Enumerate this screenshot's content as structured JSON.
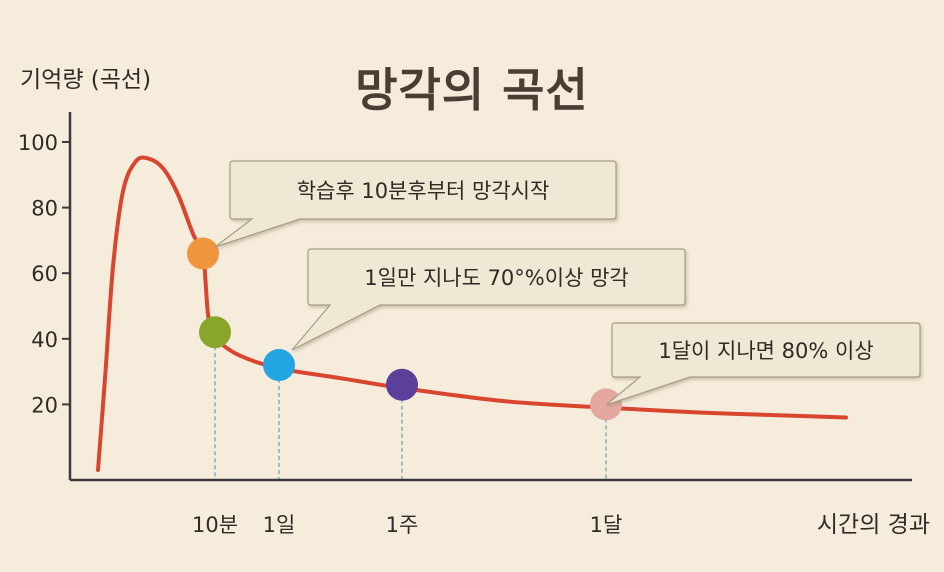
{
  "title": "망각의 곡선",
  "chart_data": {
    "type": "line",
    "title": "망각의 곡선",
    "ylabel": "기억량 (곡선)",
    "xlabel": "시간의 경과",
    "ylim": [
      0,
      110
    ],
    "yticks": [
      20,
      40,
      60,
      80,
      100
    ],
    "xticks": [
      "10분",
      "1일",
      "1주",
      "1달"
    ],
    "curve": [
      {
        "x": 0.0,
        "y": 0
      },
      {
        "x": 0.03,
        "y": 30
      },
      {
        "x": 0.06,
        "y": 62
      },
      {
        "x": 0.1,
        "y": 85
      },
      {
        "x": 0.15,
        "y": 94
      },
      {
        "x": 0.2,
        "y": 95
      },
      {
        "x": 0.26,
        "y": 92
      },
      {
        "x": 0.32,
        "y": 84
      },
      {
        "x": 0.38,
        "y": 72
      },
      {
        "x": 0.42,
        "y": 66
      },
      {
        "x": 0.44,
        "y": 58
      },
      {
        "x": 0.46,
        "y": 48
      },
      {
        "x": 0.49,
        "y": 42
      },
      {
        "x": 0.52,
        "y": 40
      },
      {
        "x": 0.7,
        "y": 35
      },
      {
        "x": 1.0,
        "y": 31
      },
      {
        "x": 1.5,
        "y": 28
      },
      {
        "x": 2.0,
        "y": 25
      },
      {
        "x": 3.0,
        "y": 21
      },
      {
        "x": 4.0,
        "y": 19
      },
      {
        "x": 5.0,
        "y": 17.5
      },
      {
        "x": 6.0,
        "y": 16.5
      },
      {
        "x": 6.5,
        "y": 16
      }
    ],
    "points": [
      {
        "name": "marker-orange",
        "x": 0.42,
        "y": 66,
        "color": "#f0963f"
      },
      {
        "name": "marker-green",
        "x": 0.52,
        "y": 42,
        "color": "#8aa52b"
      },
      {
        "name": "marker-blue",
        "x": 1.0,
        "y": 32,
        "color": "#22a5e0"
      },
      {
        "name": "marker-purple",
        "x": 2.0,
        "y": 26,
        "color": "#5b3f98"
      },
      {
        "name": "marker-pink",
        "x": 4.0,
        "y": 20,
        "color": "#e5a8a0"
      }
    ],
    "tick_positions": [
      0.52,
      1.0,
      2.0,
      4.0
    ],
    "annotations": [
      {
        "text": "학습후 10분후부터 망각시작"
      },
      {
        "text": "1일만 지나도 70°%이상 망각"
      },
      {
        "text": "1달이 지나면 80% 이상"
      }
    ],
    "line_color": "#d9462f"
  }
}
